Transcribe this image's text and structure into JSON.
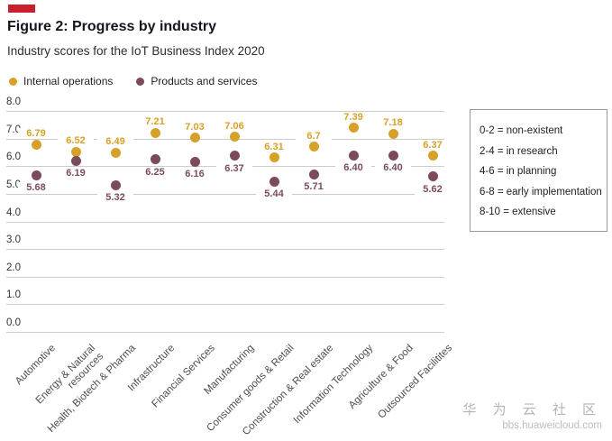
{
  "chart_data": {
    "type": "scatter",
    "title": "Figure 2: Progress by industry",
    "subtitle": "Industry scores for the IoT Business Index 2020",
    "categories": [
      "Automotive",
      "Energy & Natural\nresources",
      "Health, Biotech & Pharma",
      "Infrastructure",
      "Financial Services",
      "Manufacturing",
      "Consumer goods & Retail",
      "Construction & Real estate",
      "Information Technology",
      "Agriculture & Food",
      "Outsourced Facilitites"
    ],
    "series": [
      {
        "name": "Internal operations",
        "color": "#D7A129",
        "values": [
          6.79,
          6.52,
          6.49,
          7.21,
          7.03,
          7.06,
          6.31,
          6.7,
          7.39,
          7.18,
          6.37
        ],
        "labels": [
          "6.79",
          "6.52",
          "6.49",
          "7.21",
          "7.03",
          "7.06",
          "6.31",
          "6.7",
          "7.39",
          "7.18",
          "6.37"
        ]
      },
      {
        "name": "Products and services",
        "color": "#7C4A5F",
        "values": [
          5.68,
          6.19,
          5.32,
          6.25,
          6.16,
          6.37,
          5.44,
          5.71,
          6.4,
          6.4,
          5.62
        ],
        "labels": [
          "5.68",
          "6.19",
          "5.32",
          "6.25",
          "6.16",
          "6.37",
          "5.44",
          "5.71",
          "6.40",
          "6.40",
          "5.62"
        ]
      }
    ],
    "ylim": [
      0,
      8
    ],
    "yticks": [
      "8.0",
      "7.0",
      "6.0",
      "5.0",
      "4.0",
      "3.0",
      "2.0",
      "1.0",
      "0.0"
    ],
    "grid": true,
    "legend_position": "top-left"
  },
  "scale_key": {
    "items": [
      "0-2 = non-existent",
      "2-4 = in research",
      "4-6 = in planning",
      "6-8 = early implementation",
      "8-10 = extensive"
    ]
  },
  "accent_color": "#C8202F",
  "watermark": {
    "cjk": "华 为 云 社 区",
    "url": "bbs.huaweicloud.com"
  }
}
